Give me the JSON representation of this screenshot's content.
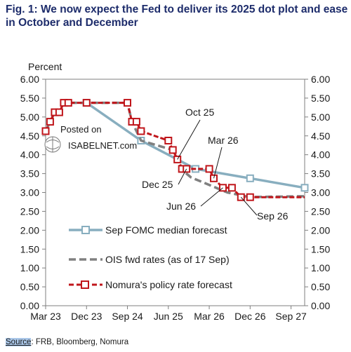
{
  "title": "Fig. 1: We now expect the Fed to deliver its 2025 dot plot and ease in October and December",
  "source_label": "Source",
  "source_text": ": FRB, Bloomberg, Nomura",
  "watermark": {
    "line1": "Posted on",
    "line2": "ISABELNET.com"
  },
  "chart_data": {
    "type": "line",
    "ylabel": "Percent",
    "ylim": [
      0,
      6
    ],
    "yticks": [
      "0.00",
      "0.50",
      "1.00",
      "1.50",
      "2.00",
      "2.50",
      "3.00",
      "3.50",
      "4.00",
      "4.50",
      "5.00",
      "5.50",
      "6.00"
    ],
    "xlim": [
      2023.167,
      2027.917
    ],
    "xticks": [
      {
        "label": "Mar 23",
        "x": 2023.167
      },
      {
        "label": "Dec 23",
        "x": 2023.917
      },
      {
        "label": "Sep 24",
        "x": 2024.667
      },
      {
        "label": "Jun 25",
        "x": 2025.417
      },
      {
        "label": "Mar 26",
        "x": 2026.167
      },
      {
        "label": "Dec 26",
        "x": 2026.917
      },
      {
        "label": "Sep 27",
        "x": 2027.667
      }
    ],
    "grid": false,
    "legend_position": "bottom-left",
    "colors": {
      "sep": "#88aebf",
      "ois": "#808080",
      "nomura": "#c0161b"
    },
    "series": [
      {
        "name": "Sep FOMC median forecast",
        "style": "solid-square-marker",
        "x": [
          2023.917,
          2024.917,
          2025.917,
          2026.917,
          2027.917
        ],
        "y": [
          5.375,
          4.375,
          3.625,
          3.375,
          3.125
        ]
      },
      {
        "name": "OIS fwd rates (as of 17 Sep)",
        "style": "dashed",
        "x": [
          2023.167,
          2023.25,
          2023.333,
          2023.417,
          2023.5,
          2023.583,
          2023.917,
          2024.667,
          2024.75,
          2024.833,
          2024.917,
          2025.5,
          2025.583,
          2025.667,
          2025.75,
          2025.833,
          2026.0,
          2026.167,
          2026.333,
          2026.5,
          2026.667,
          2026.833,
          2026.917,
          2027.917
        ],
        "y": [
          4.625,
          4.875,
          5.125,
          5.125,
          5.375,
          5.375,
          5.375,
          5.375,
          4.875,
          4.625,
          4.375,
          4.125,
          3.875,
          3.65,
          3.5,
          3.4,
          3.3,
          3.2,
          3.1,
          3.0,
          2.95,
          2.9,
          2.88,
          2.9
        ]
      },
      {
        "name": "Nomura's policy rate forecast",
        "style": "dashed-square-marker",
        "x": [
          2023.167,
          2023.25,
          2023.333,
          2023.417,
          2023.5,
          2023.583,
          2023.917,
          2024.667,
          2024.75,
          2024.833,
          2024.917,
          2025.417,
          2025.5,
          2025.583,
          2025.667,
          2025.75,
          2026.167,
          2026.25,
          2026.417,
          2026.583,
          2026.75,
          2026.917,
          2027.917
        ],
        "y": [
          4.625,
          4.875,
          5.125,
          5.125,
          5.375,
          5.375,
          5.375,
          5.375,
          4.875,
          4.875,
          4.625,
          4.375,
          4.125,
          3.875,
          3.625,
          3.625,
          3.625,
          3.375,
          3.125,
          3.125,
          2.875,
          2.875,
          2.875
        ]
      }
    ],
    "annotations": [
      {
        "text": "Oct 25",
        "target_x": 2025.583,
        "target_y": 3.875
      },
      {
        "text": "Dec 25",
        "target_x": 2025.75,
        "target_y": 3.625
      },
      {
        "text": "Mar 26",
        "target_x": 2026.25,
        "target_y": 3.375
      },
      {
        "text": "Jun 26",
        "target_x": 2026.417,
        "target_y": 3.125
      },
      {
        "text": "Sep 26",
        "target_x": 2026.75,
        "target_y": 2.875
      }
    ]
  }
}
